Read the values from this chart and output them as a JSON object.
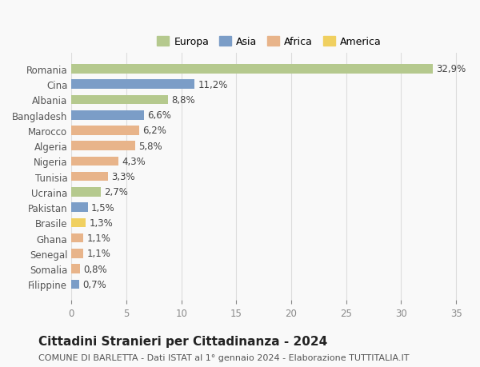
{
  "countries": [
    "Romania",
    "Cina",
    "Albania",
    "Bangladesh",
    "Marocco",
    "Algeria",
    "Nigeria",
    "Tunisia",
    "Ucraina",
    "Pakistan",
    "Brasile",
    "Ghana",
    "Senegal",
    "Somalia",
    "Filippine"
  ],
  "values": [
    32.9,
    11.2,
    8.8,
    6.6,
    6.2,
    5.8,
    4.3,
    3.3,
    2.7,
    1.5,
    1.3,
    1.1,
    1.1,
    0.8,
    0.7
  ],
  "labels": [
    "32,9%",
    "11,2%",
    "8,8%",
    "6,6%",
    "6,2%",
    "5,8%",
    "4,3%",
    "3,3%",
    "2,7%",
    "1,5%",
    "1,3%",
    "1,1%",
    "1,1%",
    "0,8%",
    "0,7%"
  ],
  "continents": [
    "Europa",
    "Asia",
    "Europa",
    "Asia",
    "Africa",
    "Africa",
    "Africa",
    "Africa",
    "Europa",
    "Asia",
    "America",
    "Africa",
    "Africa",
    "Africa",
    "Asia"
  ],
  "continent_colors": {
    "Europa": "#b5c98e",
    "Asia": "#7b9dc7",
    "Africa": "#e8b48a",
    "America": "#f0d060"
  },
  "legend_order": [
    "Europa",
    "Asia",
    "Africa",
    "America"
  ],
  "legend_colors": [
    "#b5c98e",
    "#7b9dc7",
    "#e8b48a",
    "#f0d060"
  ],
  "xlim": [
    0,
    36
  ],
  "xticks": [
    0,
    5,
    10,
    15,
    20,
    25,
    30,
    35
  ],
  "title": "Cittadini Stranieri per Cittadinanza - 2024",
  "subtitle": "COMUNE DI BARLETTA - Dati ISTAT al 1° gennaio 2024 - Elaborazione TUTTITALIA.IT",
  "bg_color": "#f9f9f9",
  "grid_color": "#dddddd",
  "bar_height": 0.6,
  "label_fontsize": 8.5,
  "tick_fontsize": 8.5,
  "title_fontsize": 11,
  "subtitle_fontsize": 8
}
